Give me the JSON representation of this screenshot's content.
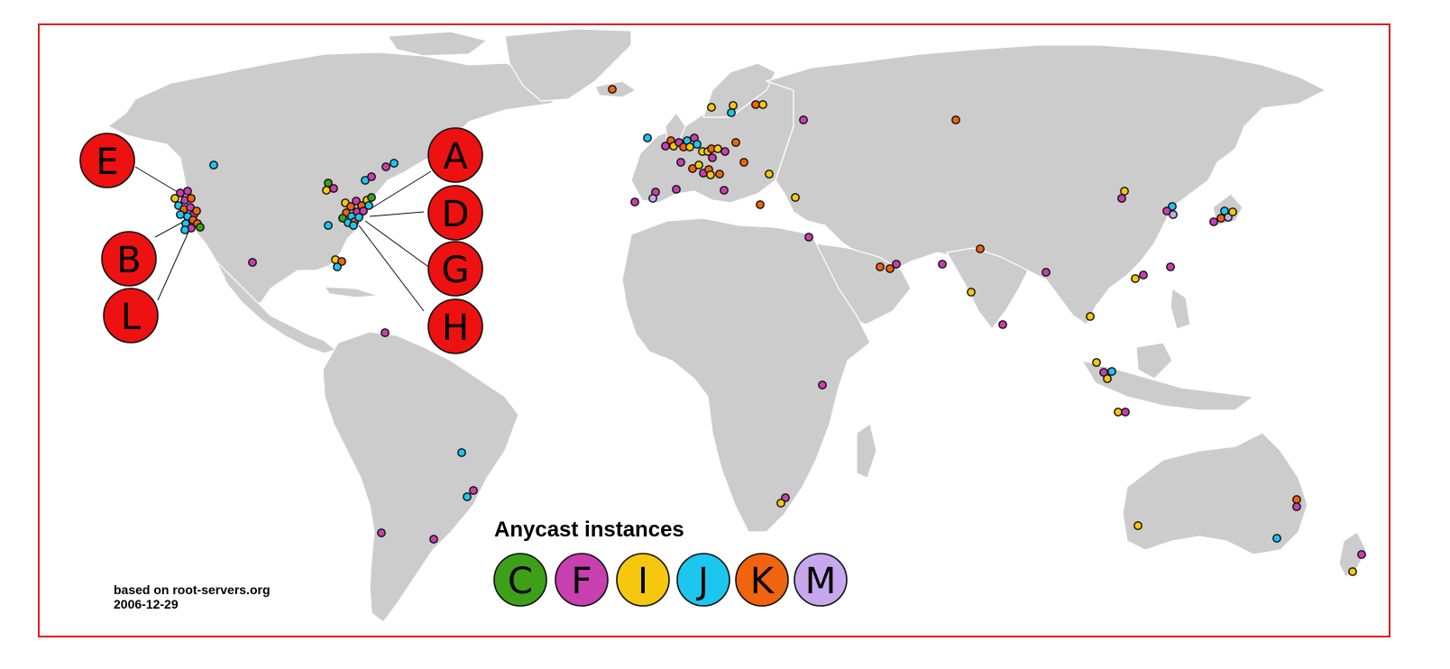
{
  "map": {
    "legend_title": "Anycast instances",
    "source_line": "based on root-servers.org",
    "date_line": "2006-12-29",
    "colors": {
      "frame": "#e02020",
      "land": "#cccccc",
      "root_letter_fill": "#ee1111",
      "C": "#3da018",
      "F": "#c83fb0",
      "I": "#f5c80f",
      "J": "#1cc6ee",
      "K": "#f0640f",
      "M": "#c7a8ee"
    },
    "legend": [
      {
        "letter": "C",
        "color": "#3da018"
      },
      {
        "letter": "F",
        "color": "#c83fb0"
      },
      {
        "letter": "I",
        "color": "#f5c80f"
      },
      {
        "letter": "J",
        "color": "#1cc6ee"
      },
      {
        "letter": "K",
        "color": "#f0640f"
      },
      {
        "letter": "M",
        "color": "#c7a8ee"
      }
    ],
    "root_labels_west": [
      "E",
      "B",
      "L"
    ],
    "root_labels_east": [
      "A",
      "D",
      "G",
      "H"
    ]
  }
}
